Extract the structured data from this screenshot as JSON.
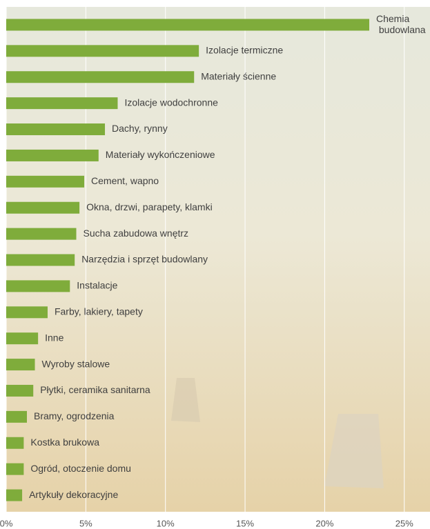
{
  "chart_data": {
    "type": "bar",
    "orientation": "horizontal",
    "categories": [
      "Chemia budowlana",
      "Izolacje termiczne",
      "Materiały ścienne",
      "Izolacje wodochronne",
      "Dachy, rynny",
      "Materiały wykończeniowe",
      "Cement, wapno",
      "Okna, drzwi, parapety, klamki",
      "Sucha zabudowa wnętrz",
      "Narzędzia i sprzęt budowlany",
      "Instalacje",
      "Farby, lakiery, tapety",
      "Inne",
      "Wyroby stalowe",
      "Płytki, ceramika sanitarna",
      "Bramy, ogrodzenia",
      "Kostka brukowa",
      "Ogród, otoczenie domu",
      "Artykuły dekoracyjne"
    ],
    "values": [
      22.8,
      12.1,
      11.8,
      7.0,
      6.2,
      5.8,
      4.9,
      4.6,
      4.4,
      4.3,
      4.0,
      2.6,
      2.0,
      1.8,
      1.7,
      1.3,
      1.1,
      1.1,
      1.0
    ],
    "color": "#7fac3b",
    "xlim": [
      0,
      26.6
    ],
    "xticks": [
      {
        "value": 0,
        "label": "0%"
      },
      {
        "value": 5,
        "label": "5%"
      },
      {
        "value": 10,
        "label": "10%"
      },
      {
        "value": 15,
        "label": "15%"
      },
      {
        "value": 20,
        "label": "20%"
      },
      {
        "value": 25,
        "label": "25%"
      }
    ],
    "grid": true
  }
}
